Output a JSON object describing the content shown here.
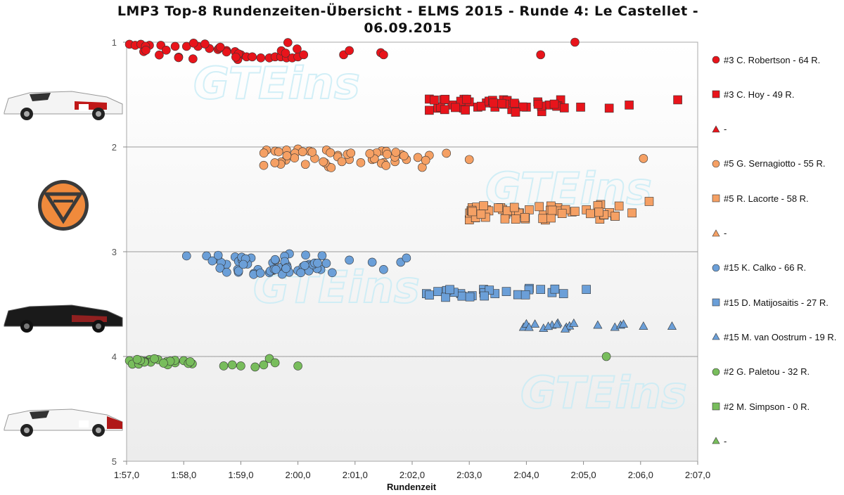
{
  "chart_data": {
    "type": "scatter",
    "title": "LMP3 Top-8 Rundenzeiten-Übersicht - ELMS 2015 - Runde 4: Le Castellet - 06.09.2015",
    "xlabel": "Rundenzeit",
    "ylabel": "",
    "x_ticks": [
      "1:57,0",
      "1:58,0",
      "1:59,0",
      "2:00,0",
      "2:01,0",
      "2:02,0",
      "2:03,0",
      "2:04,0",
      "2:05,0",
      "2:06,0",
      "2:07,0"
    ],
    "y_ticks": [
      "1",
      "2",
      "3",
      "4",
      "5"
    ],
    "xlim_seconds": [
      117,
      127
    ],
    "ylim": [
      1,
      5
    ],
    "grid": "horizontal",
    "legend_position": "right",
    "watermark": "GTEins",
    "series": [
      {
        "name": "#3 C. Robertson - 64 R.",
        "marker": "circle",
        "color": "#e8141b",
        "seed": 11,
        "x_sec": [
          117.05,
          117.15,
          117.25,
          117.4,
          117.6,
          117.85,
          118.05,
          118.25,
          118.45,
          118.6,
          118.75,
          118.9,
          119.0,
          119.1,
          119.2,
          119.35,
          119.5,
          119.6,
          119.7,
          119.8,
          119.9,
          120.0,
          120.1,
          120.8,
          120.9,
          121.45,
          121.5,
          124.25,
          124.85
        ],
        "y": [
          1.02,
          1.03,
          1.02,
          1.03,
          1.03,
          1.04,
          1.04,
          1.04,
          1.06,
          1.07,
          1.08,
          1.09,
          1.12,
          1.14,
          1.14,
          1.15,
          1.15,
          1.14,
          1.14,
          1.15,
          1.15,
          1.14,
          1.12,
          1.12,
          1.08,
          1.1,
          1.12,
          1.12,
          1.0
        ],
        "extra": {
          "count": 20,
          "xmin": 117.3,
          "xmax": 120.1,
          "ymin": 1.0,
          "ymax": 1.2
        }
      },
      {
        "name": "#3 C. Hoy - 49 R.",
        "marker": "square",
        "color": "#e8141b",
        "seed": 23,
        "x_sec": [
          122.3,
          122.45,
          122.55,
          122.7,
          122.9,
          123.0,
          123.15,
          123.3,
          123.45,
          123.6,
          123.8,
          124.0,
          124.2,
          124.4,
          124.6,
          124.95,
          125.45,
          125.8,
          126.65
        ],
        "y": [
          1.65,
          1.63,
          1.55,
          1.6,
          1.63,
          1.57,
          1.62,
          1.58,
          1.62,
          1.55,
          1.6,
          1.62,
          1.57,
          1.6,
          1.55,
          1.62,
          1.63,
          1.6,
          1.55
        ],
        "extra": {
          "count": 30,
          "xmin": 122.3,
          "xmax": 124.7,
          "ymin": 1.54,
          "ymax": 1.67
        }
      },
      {
        "name": "-",
        "marker": "triangle",
        "color": "#e8141b",
        "seed": 0,
        "x_sec": [],
        "y": []
      },
      {
        "name": "#5 G. Sernagiotto - 55 R.",
        "marker": "circle",
        "color": "#f5a064",
        "seed": 37,
        "x_sec": [
          119.45,
          119.6,
          119.8,
          120.0,
          120.2,
          120.5,
          120.7,
          120.9,
          121.1,
          121.3,
          121.5,
          121.7,
          121.9,
          122.1,
          122.3,
          122.6,
          123.0,
          126.05
        ],
        "y": [
          2.03,
          2.04,
          2.03,
          2.02,
          2.04,
          2.03,
          2.08,
          2.12,
          2.15,
          2.12,
          2.15,
          2.14,
          2.12,
          2.1,
          2.08,
          2.06,
          2.12,
          2.11
        ],
        "extra": {
          "count": 37,
          "xmin": 119.4,
          "xmax": 122.3,
          "ymin": 2.02,
          "ymax": 2.2
        }
      },
      {
        "name": "#5 R. Lacorte - 58 R.",
        "marker": "square",
        "color": "#f5a064",
        "seed": 53,
        "x_sec": [
          123.05,
          123.3,
          123.55,
          123.8,
          124.05,
          124.3,
          124.55,
          124.8,
          125.05,
          125.3,
          125.55,
          125.85,
          126.15
        ],
        "y": [
          2.58,
          2.6,
          2.58,
          2.62,
          2.6,
          2.65,
          2.58,
          2.62,
          2.6,
          2.55,
          2.66,
          2.63,
          2.52
        ],
        "extra": {
          "count": 45,
          "xmin": 123.0,
          "xmax": 125.7,
          "ymin": 2.55,
          "ymax": 2.7
        }
      },
      {
        "name": "-",
        "marker": "triangle",
        "color": "#f5a064",
        "seed": 0,
        "x_sec": [],
        "y": []
      },
      {
        "name": "#15 K. Calko - 66 R.",
        "marker": "circle",
        "color": "#6b9fd8",
        "seed": 71,
        "x_sec": [
          118.05,
          118.4,
          118.6,
          118.75,
          118.9,
          119.1,
          119.3,
          119.5,
          119.7,
          119.85,
          120.0,
          120.2,
          120.4,
          120.6,
          120.9,
          121.3,
          121.5,
          121.8,
          121.9
        ],
        "y": [
          3.04,
          3.04,
          3.07,
          3.12,
          3.05,
          3.1,
          3.17,
          3.2,
          3.15,
          3.02,
          3.18,
          3.12,
          3.17,
          3.2,
          3.08,
          3.1,
          3.17,
          3.1,
          3.06
        ],
        "extra": {
          "count": 47,
          "xmin": 118.5,
          "xmax": 120.5,
          "ymin": 3.02,
          "ymax": 3.22
        }
      },
      {
        "name": "#15 D. Matijosaitis - 27 R.",
        "marker": "square",
        "color": "#6b9fd8",
        "seed": 89,
        "x_sec": [
          122.25,
          122.45,
          122.65,
          122.85,
          123.05,
          123.25,
          123.45,
          123.65,
          123.85,
          124.05,
          124.25,
          124.45,
          124.65,
          125.05
        ],
        "y": [
          3.4,
          3.38,
          3.37,
          3.4,
          3.42,
          3.36,
          3.4,
          3.38,
          3.41,
          3.35,
          3.36,
          3.39,
          3.4,
          3.36
        ],
        "extra": {
          "count": 13,
          "xmin": 122.3,
          "xmax": 124.6,
          "ymin": 3.35,
          "ymax": 3.44
        }
      },
      {
        "name": "#15 M. van Oostrum - 19 R.",
        "marker": "triangle",
        "color": "#6b9fd8",
        "seed": 0,
        "x_sec": [
          123.95,
          124.15,
          124.3,
          124.45,
          124.55,
          124.7,
          125.25,
          125.55,
          125.65,
          125.7,
          126.05,
          126.55
        ],
        "y": [
          3.72,
          3.69,
          3.73,
          3.7,
          3.68,
          3.72,
          3.7,
          3.72,
          3.7,
          3.69,
          3.71,
          3.71
        ],
        "extra": {
          "count": 7,
          "xmin": 124.0,
          "xmax": 125.0,
          "ymin": 3.68,
          "ymax": 3.74
        }
      },
      {
        "name": "#2 G. Paletou - 32 R.",
        "marker": "circle",
        "color": "#78bd5c",
        "seed": 97,
        "x_sec": [
          117.05,
          117.2,
          117.4,
          117.55,
          117.7,
          117.85,
          118.0,
          118.15,
          118.7,
          118.85,
          119.0,
          119.25,
          119.4,
          119.5,
          119.6,
          120.0,
          125.4
        ],
        "y": [
          4.04,
          4.04,
          4.03,
          4.03,
          4.05,
          4.06,
          4.04,
          4.07,
          4.09,
          4.08,
          4.09,
          4.1,
          4.08,
          4.02,
          4.06,
          4.09,
          4.0
        ],
        "extra": {
          "count": 15,
          "xmin": 117.1,
          "xmax": 118.2,
          "ymin": 4.02,
          "ymax": 4.09
        }
      },
      {
        "name": "#2 M. Simpson - 0 R.",
        "marker": "square",
        "color": "#78bd5c",
        "seed": 0,
        "x_sec": [],
        "y": []
      },
      {
        "name": "-",
        "marker": "triangle",
        "color": "#78bd5c",
        "seed": 0,
        "x_sec": [],
        "y": []
      }
    ]
  },
  "car_images": [
    {
      "name": "car-nissan-white",
      "colors": [
        "#ffffff",
        "#c01818",
        "#222222"
      ]
    },
    {
      "name": "team-logo-orange",
      "colors": [
        "#f08a3c",
        "#3a3a3a"
      ]
    },
    {
      "name": "car-black",
      "colors": [
        "#1a1a1a",
        "#902020"
      ]
    },
    {
      "name": "car-white-red",
      "colors": [
        "#ffffff",
        "#b01818",
        "#222222"
      ]
    }
  ]
}
